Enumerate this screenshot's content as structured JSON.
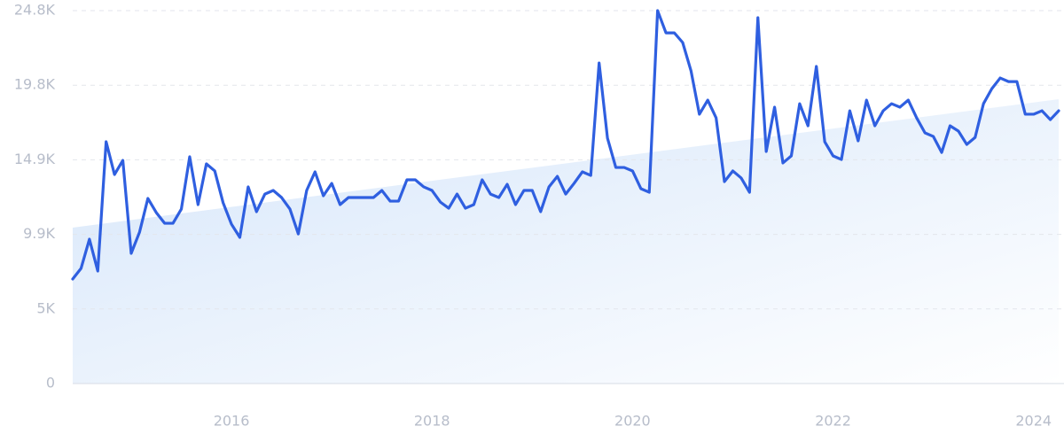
{
  "chart_data": {
    "type": "line",
    "categories": [
      null,
      null,
      null,
      null,
      null,
      null,
      null,
      null,
      null,
      null,
      null,
      null,
      null,
      null,
      null,
      null,
      null,
      null,
      null,
      "2016",
      null,
      null,
      null,
      null,
      null,
      null,
      null,
      null,
      null,
      null,
      null,
      null,
      null,
      null,
      null,
      null,
      null,
      null,
      null,
      null,
      null,
      null,
      null,
      "2018",
      null,
      null,
      null,
      null,
      null,
      null,
      null,
      null,
      null,
      null,
      null,
      null,
      null,
      null,
      null,
      null,
      null,
      null,
      null,
      null,
      null,
      null,
      null,
      "2020",
      null,
      null,
      null,
      null,
      null,
      null,
      null,
      null,
      null,
      null,
      null,
      null,
      null,
      null,
      null,
      null,
      null,
      null,
      null,
      null,
      null,
      null,
      null,
      "2022",
      null,
      null,
      null,
      null,
      null,
      null,
      null,
      null,
      null,
      null,
      null,
      null,
      null,
      null,
      null,
      null,
      null,
      null,
      null,
      null,
      null,
      null,
      null,
      "2024",
      null,
      null,
      null
    ],
    "series": [
      {
        "color": "#2f5fe0",
        "values": [
          6950,
          7660,
          9600,
          7480,
          16080,
          13900,
          14840,
          8660,
          10070,
          12310,
          11370,
          10660,
          10660,
          11600,
          15080,
          11900,
          14610,
          14140,
          12020,
          10600,
          9720,
          13080,
          11430,
          12600,
          12840,
          12370,
          11600,
          9950,
          12840,
          14080,
          12490,
          13310,
          11900,
          12370,
          12370,
          12370,
          12370,
          12840,
          12130,
          12130,
          13550,
          13550,
          13080,
          12840,
          12070,
          11660,
          12600,
          11660,
          11900,
          13550,
          12600,
          12370,
          13250,
          11900,
          12840,
          12840,
          11430,
          13080,
          13780,
          12600,
          13310,
          14080,
          13840,
          21320,
          16320,
          14370,
          14370,
          14140,
          12960,
          12720,
          24800,
          23320,
          23320,
          22680,
          20790,
          17910,
          18850,
          17670,
          13430,
          14140,
          13670,
          12720,
          24330,
          15430,
          18380,
          14670,
          15140,
          18610,
          17140,
          21090,
          16080,
          15140,
          14900,
          18140,
          16140,
          18850,
          17140,
          18140,
          18610,
          18380,
          18850,
          17670,
          16670,
          16430,
          15370,
          17140,
          16790,
          15900,
          16370,
          18610,
          19610,
          20320,
          20080,
          20080,
          17910,
          17910,
          18140,
          17550,
          18140
        ]
      }
    ],
    "trend": {
      "color": "#dbe9fb",
      "values": [
        10370,
        18910
      ]
    },
    "ylim": [
      0,
      24800
    ],
    "yticks": [
      0,
      {
        "value": 4960,
        "label": "5K"
      },
      {
        "value": 9920,
        "label": "9.9K"
      },
      {
        "value": 14880,
        "label": "14.9K"
      },
      {
        "value": 19840,
        "label": "19.8K"
      },
      {
        "value": 24800,
        "label": "24.8K"
      }
    ],
    "grid": true
  }
}
